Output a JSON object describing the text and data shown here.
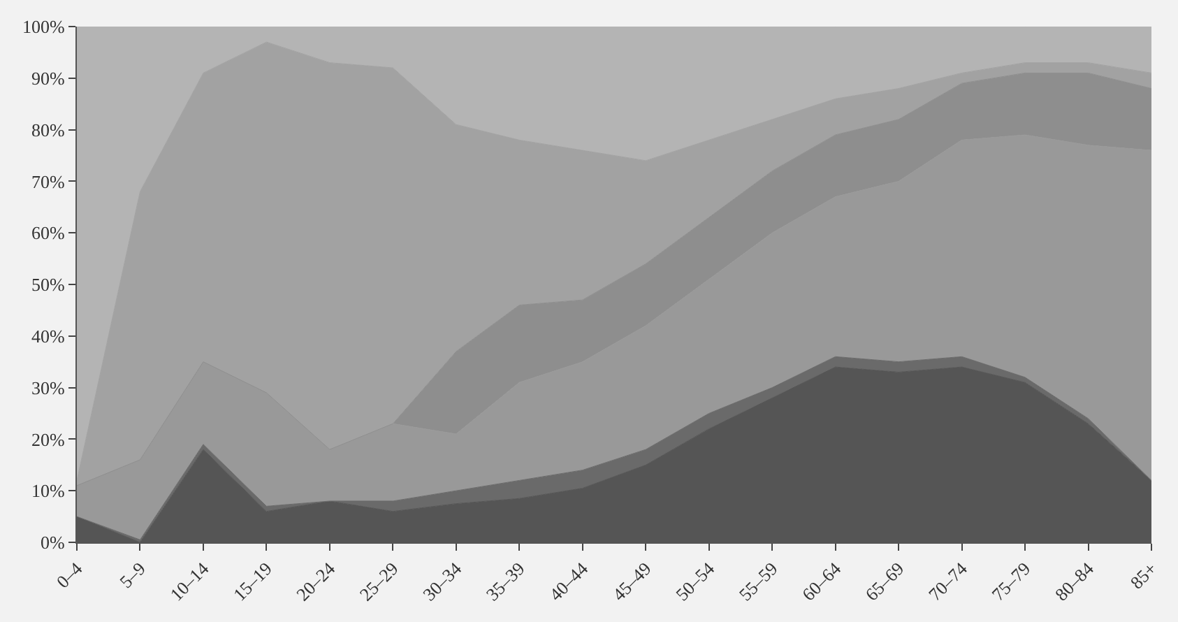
{
  "chart_data": {
    "type": "area",
    "stacked": true,
    "categories": [
      "0–4",
      "5–9",
      "10–14",
      "15–19",
      "20–24",
      "25–29",
      "30–34",
      "35–39",
      "40–44",
      "45–49",
      "50–54",
      "55–59",
      "60–64",
      "65–69",
      "70–74",
      "75–79",
      "80–84",
      "85+"
    ],
    "ylim": [
      0,
      100
    ],
    "yticks": [
      {
        "value": 0,
        "label": "0%"
      },
      {
        "value": 10,
        "label": "10%"
      },
      {
        "value": 20,
        "label": "20%"
      },
      {
        "value": 30,
        "label": "30%"
      },
      {
        "value": 40,
        "label": "40%"
      },
      {
        "value": 50,
        "label": "50%"
      },
      {
        "value": 60,
        "label": "60%"
      },
      {
        "value": 70,
        "label": "70%"
      },
      {
        "value": 80,
        "label": "80%"
      },
      {
        "value": 90,
        "label": "90%"
      },
      {
        "value": 100,
        "label": "100%"
      }
    ],
    "series": [
      {
        "color": "#555555",
        "values": [
          5,
          0,
          18,
          6,
          8,
          6,
          7.5,
          8.5,
          10.5,
          15,
          22,
          28,
          34,
          33,
          34,
          31,
          23,
          12
        ]
      },
      {
        "color": "#6a6a6a",
        "values": [
          0,
          0.5,
          1,
          1,
          0,
          2,
          2.5,
          3.5,
          3.5,
          3,
          3,
          2,
          2,
          2,
          2,
          1,
          1,
          0
        ]
      },
      {
        "color": "#999999",
        "values": [
          6,
          15.5,
          16,
          22,
          10,
          15,
          11,
          19,
          21,
          24,
          26,
          30,
          31,
          35,
          42,
          47,
          53,
          64
        ]
      },
      {
        "color": "#8e8e8e",
        "values": [
          0,
          0,
          0,
          0,
          0,
          0,
          16,
          15,
          12,
          12,
          12,
          12,
          12,
          12,
          11,
          12,
          14,
          12
        ]
      },
      {
        "color": "#a2a2a2",
        "values": [
          1,
          52,
          56,
          68,
          75,
          69,
          44,
          32,
          29,
          20,
          15,
          10,
          7,
          6,
          2,
          2,
          2,
          3
        ]
      },
      {
        "color": "#b4b4b4",
        "values": [
          88,
          32,
          9,
          3,
          7,
          8,
          19,
          22,
          24,
          26,
          22,
          18,
          14,
          12,
          9,
          7,
          7,
          9
        ]
      }
    ]
  }
}
